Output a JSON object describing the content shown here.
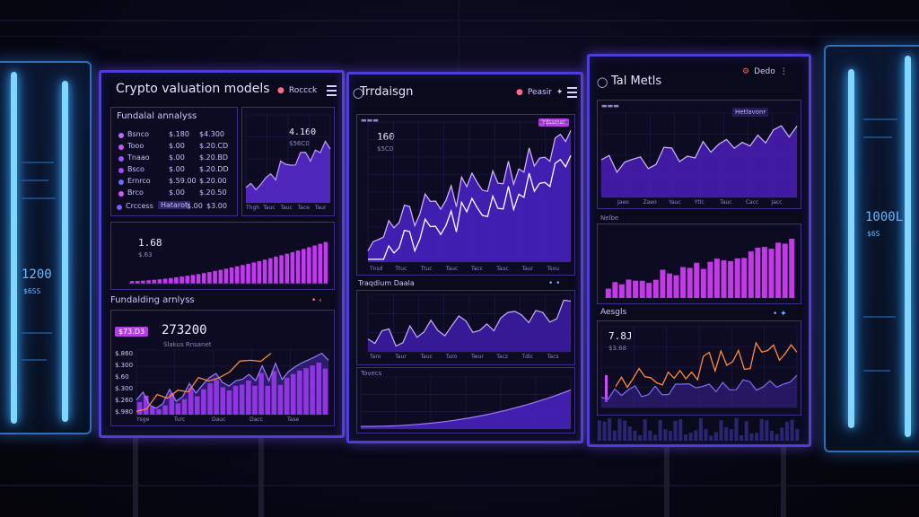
{
  "left_tube": {
    "value": "1200",
    "sub": "$6SS"
  },
  "right_tube": {
    "value": "1000L",
    "sub": "$6S"
  },
  "monitor1": {
    "title": "Crypto valuation models",
    "header_control": "Roccck",
    "section1_title": "Fundalal annalyss",
    "assets": [
      {
        "name": "Bsnco",
        "v1": "$.180",
        "v2": "$4.300",
        "color": "#b56bff"
      },
      {
        "name": "Tooo",
        "v1": "$.00",
        "v2": "$.20.CD",
        "color": "#c455ff"
      },
      {
        "name": "Tnaao",
        "v1": "$.00",
        "v2": "$.20.BD",
        "color": "#8d5bff"
      },
      {
        "name": "Bsco",
        "v1": "$.00",
        "v2": "$.20.DD",
        "color": "#a04bff"
      },
      {
        "name": "Ernrco",
        "v1": "$.59.00",
        "v2": "$.20.00",
        "color": "#6a6bff"
      },
      {
        "name": "Brco",
        "v1": "$.00",
        "v2": "$.20.50",
        "color": "#d15bff"
      }
    ],
    "footer_label": "Crccess",
    "footer_btn": "Hatarot",
    "footer_v1": "$.00",
    "footer_v2": "$3.00",
    "mini_value": "4.160",
    "mini_sub": "$56C0",
    "mini_ticks": [
      "Thgh",
      "Tauc",
      "Tauc",
      "Tace",
      "Taur"
    ],
    "bar_value": "1.68",
    "bar_sub": "$.63",
    "section2_title": "Fundalding arnlyss",
    "section2_ctl": "• ‹",
    "tag": "$73.D3",
    "big_value": "273200",
    "big_sub": "Slakus Rnsanet",
    "ylabels": [
      "$.860",
      "$.300",
      "$.60",
      "$.300",
      "$.260",
      "$.980"
    ],
    "bottom_ticks": [
      "Ysge",
      "Turc",
      "Dauc",
      "Dacc",
      "Tase"
    ]
  },
  "monitor2": {
    "title": "Trrdaisgn",
    "header_control": "Peasir",
    "main_value": "160",
    "main_sub": "$5C0",
    "main_tag": "Ydssmer",
    "main_ticks": [
      "Tnsd",
      "Ttuc",
      "Ttuc",
      "Tauc",
      "Tacc",
      "Tauc",
      "Taur",
      "Tsou"
    ],
    "section2_title": "Traqdium Daala",
    "mid_ticks": [
      "Taro",
      "Taur",
      "Tauc",
      "Turo",
      "Twur",
      "Tacz",
      "Tdic",
      "Tacs"
    ],
    "section3_title": "Tovecs"
  },
  "monitor3": {
    "title": "Tal Metls",
    "header_control": "Dedo",
    "top_tag": "Hetlavonr",
    "top_ticks": [
      "Jaeo",
      "Zaeo",
      "Yauc",
      "Ytlc",
      "Tauc",
      "Cacc",
      "Jacc"
    ],
    "mid_label": "Nelbe",
    "section3_title": "Aesgls",
    "section3_ctl": "• ✦",
    "low_value": "7.8J",
    "low_sub": "$3.68"
  }
}
